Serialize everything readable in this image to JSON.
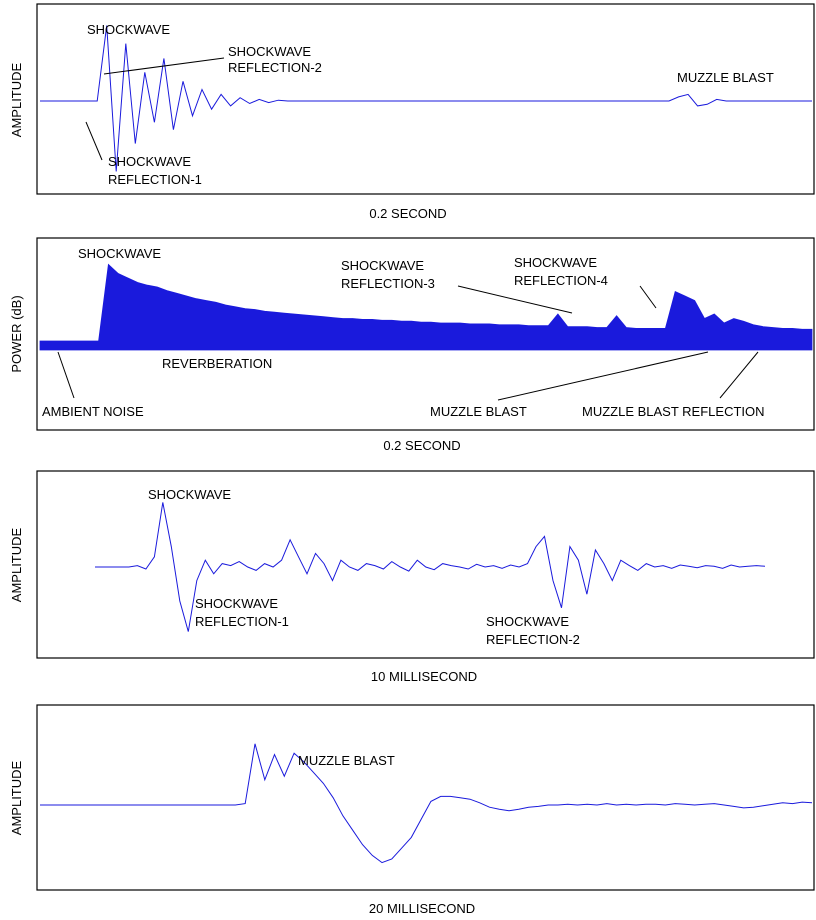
{
  "colors": {
    "signal": "#1a1adc",
    "frame": "#000000",
    "annotation": "#000000"
  },
  "chart_data": [
    {
      "type": "line",
      "ylabel": "AMPLITUDE",
      "xlabel": "0.2 SECOND",
      "grid": false,
      "series": [
        {
          "values": [
            0,
            0,
            0,
            0,
            0,
            0,
            0,
            0.92,
            -0.86,
            0.7,
            -0.52,
            0.35,
            -0.26,
            0.52,
            -0.35,
            0.24,
            -0.18,
            0.14,
            -0.1,
            0.08,
            -0.06,
            0.04,
            -0.03,
            0.02,
            -0.02,
            0.01,
            0,
            0,
            0,
            0,
            0,
            0,
            0,
            0,
            0,
            0,
            0,
            0,
            0,
            0,
            0,
            0,
            0,
            0,
            0,
            0,
            0,
            0,
            0,
            0,
            0,
            0,
            0,
            0,
            0,
            0,
            0,
            0,
            0,
            0,
            0,
            0,
            0,
            0,
            0,
            0,
            0,
            0.05,
            0.08,
            -0.06,
            -0.04,
            0.02,
            0,
            0,
            0,
            0,
            0,
            0,
            0,
            0,
            0,
            0
          ]
        }
      ],
      "annotations": [
        "SHOCKWAVE",
        "SHOCKWAVE REFLECTION-2",
        "SHOCKWAVE REFLECTION-1",
        "MUZZLE BLAST"
      ]
    },
    {
      "type": "line",
      "ylabel": "POWER (dB)",
      "xlabel": "0.2 SECOND",
      "grid": false,
      "series": [
        {
          "values": [
            0.1,
            0.1,
            0.1,
            0.1,
            0.1,
            0.1,
            0.1,
            0.95,
            0.85,
            0.8,
            0.75,
            0.72,
            0.7,
            0.66,
            0.63,
            0.6,
            0.57,
            0.55,
            0.53,
            0.5,
            0.48,
            0.46,
            0.45,
            0.43,
            0.42,
            0.41,
            0.4,
            0.39,
            0.38,
            0.37,
            0.36,
            0.35,
            0.35,
            0.34,
            0.34,
            0.33,
            0.33,
            0.32,
            0.32,
            0.31,
            0.31,
            0.3,
            0.3,
            0.3,
            0.29,
            0.29,
            0.29,
            0.28,
            0.28,
            0.28,
            0.27,
            0.27,
            0.27,
            0.4,
            0.26,
            0.26,
            0.26,
            0.25,
            0.25,
            0.38,
            0.25,
            0.24,
            0.24,
            0.24,
            0.24,
            0.65,
            0.6,
            0.55,
            0.35,
            0.4,
            0.3,
            0.35,
            0.32,
            0.28,
            0.26,
            0.25,
            0.24,
            0.24,
            0.23,
            0.23
          ]
        }
      ],
      "annotations": [
        "SHOCKWAVE",
        "SHOCKWAVE REFLECTION-3",
        "SHOCKWAVE REFLECTION-4",
        "REVERBERATION",
        "AMBIENT NOISE",
        "MUZZLE BLAST",
        "MUZZLE BLAST REFLECTION"
      ]
    },
    {
      "type": "line",
      "ylabel": "AMPLITUDE",
      "xlabel": "10 MILLISECOND",
      "grid": false,
      "series": [
        {
          "values": [
            0,
            0,
            0,
            0,
            0,
            0.02,
            -0.03,
            0.15,
            0.95,
            0.3,
            -0.5,
            -0.95,
            -0.2,
            0.1,
            -0.1,
            0.05,
            0.02,
            0.08,
            0,
            -0.05,
            0.05,
            0,
            0.1,
            0.4,
            0.15,
            -0.1,
            0.2,
            0.05,
            -0.2,
            0.1,
            0,
            -0.05,
            0.05,
            0.02,
            -0.03,
            0.08,
            0,
            -0.06,
            0.1,
            0,
            -0.04,
            0.05,
            0.02,
            0,
            -0.03,
            0.04,
            0,
            0.02,
            -0.02,
            0.03,
            0,
            0.05,
            0.3,
            0.45,
            -0.2,
            -0.6,
            0.3,
            0.1,
            -0.4,
            0.25,
            0.05,
            -0.2,
            0.1,
            0.02,
            -0.05,
            0.05,
            0,
            0.02,
            -0.02,
            0.03,
            0.01,
            -0.01,
            0.02,
            0.01,
            -0.02,
            0.03,
            0,
            0.01,
            0.02,
            0.01
          ]
        }
      ],
      "annotations": [
        "SHOCKWAVE",
        "SHOCKWAVE REFLECTION-1",
        "SHOCKWAVE REFLECTION-2"
      ]
    },
    {
      "type": "line",
      "ylabel": "AMPLITUDE",
      "xlabel": "20 MILLISECOND",
      "grid": false,
      "series": [
        {
          "values": [
            0,
            0,
            0,
            0,
            0,
            0,
            0,
            0,
            0,
            0,
            0,
            0,
            0,
            0,
            0,
            0,
            0,
            0,
            0,
            0,
            0,
            0.02,
            0.85,
            0.35,
            0.7,
            0.4,
            0.72,
            0.6,
            0.45,
            0.3,
            0.1,
            -0.15,
            -0.35,
            -0.55,
            -0.7,
            -0.8,
            -0.75,
            -0.6,
            -0.45,
            -0.2,
            0.05,
            0.12,
            0.12,
            0.1,
            0.08,
            0.03,
            -0.03,
            -0.06,
            -0.08,
            -0.06,
            -0.03,
            -0.02,
            0,
            0,
            0.01,
            0,
            0.01,
            0,
            0.02,
            0,
            0.01,
            0,
            0.01,
            0.01,
            0,
            0.02,
            0.01,
            0,
            0.01,
            0.02,
            0,
            -0.02,
            -0.04,
            -0.03,
            -0.01,
            0.01,
            0.03,
            0.02,
            0.04,
            0.03
          ]
        }
      ],
      "annotations": [
        "MUZZLE BLAST"
      ]
    }
  ]
}
